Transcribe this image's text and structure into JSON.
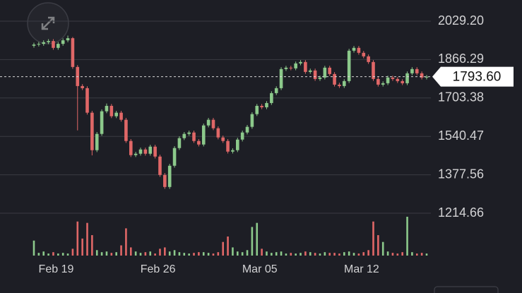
{
  "chart_data": {
    "type": "candlestick",
    "open": [
      1925,
      1930,
      1933,
      1940,
      1945,
      1916,
      1933,
      1948,
      1957,
      1835,
      1754,
      1745,
      1641,
      1482,
      1551,
      1647,
      1670,
      1626,
      1641,
      1611,
      1521,
      1461,
      1467,
      1485,
      1467,
      1497,
      1455,
      1377,
      1326,
      1416,
      1491,
      1533,
      1551,
      1557,
      1521,
      1506,
      1587,
      1611,
      1575,
      1536,
      1521,
      1476,
      1482,
      1527,
      1557,
      1581,
      1635,
      1670,
      1664,
      1682,
      1724,
      1745,
      1826,
      1832,
      1829,
      1850,
      1856,
      1814,
      1820,
      1784,
      1790,
      1832,
      1805,
      1760,
      1754,
      1775,
      1904,
      1916,
      1895,
      1880,
      1856,
      1784,
      1760,
      1766,
      1790,
      1784,
      1775,
      1766,
      1808,
      1826,
      1808,
      1790
    ],
    "high": [
      1938,
      1941,
      1948,
      1953,
      1953,
      1941,
      1956,
      1968,
      1962,
      1843,
      1762,
      1753,
      1649,
      1559,
      1655,
      1680,
      1678,
      1649,
      1649,
      1619,
      1529,
      1475,
      1493,
      1493,
      1505,
      1505,
      1463,
      1385,
      1424,
      1499,
      1541,
      1559,
      1565,
      1565,
      1529,
      1595,
      1619,
      1619,
      1583,
      1544,
      1529,
      1490,
      1535,
      1565,
      1589,
      1643,
      1678,
      1678,
      1690,
      1732,
      1753,
      1834,
      1840,
      1840,
      1858,
      1864,
      1864,
      1828,
      1828,
      1798,
      1840,
      1840,
      1813,
      1768,
      1783,
      1912,
      1924,
      1924,
      1903,
      1888,
      1864,
      1792,
      1774,
      1798,
      1798,
      1792,
      1783,
      1816,
      1834,
      1834,
      1816,
      1801
    ],
    "low": [
      1917,
      1922,
      1925,
      1932,
      1908,
      1908,
      1925,
      1940,
      1827,
      1566,
      1737,
      1633,
      1460,
      1474,
      1543,
      1639,
      1618,
      1618,
      1603,
      1513,
      1453,
      1453,
      1459,
      1459,
      1459,
      1447,
      1369,
      1318,
      1318,
      1408,
      1483,
      1525,
      1543,
      1513,
      1498,
      1498,
      1579,
      1567,
      1528,
      1513,
      1468,
      1468,
      1474,
      1519,
      1549,
      1573,
      1627,
      1656,
      1656,
      1674,
      1716,
      1737,
      1818,
      1821,
      1821,
      1842,
      1806,
      1806,
      1776,
      1776,
      1782,
      1797,
      1752,
      1746,
      1746,
      1767,
      1896,
      1887,
      1872,
      1848,
      1776,
      1752,
      1752,
      1758,
      1776,
      1767,
      1758,
      1758,
      1800,
      1800,
      1782,
      1782
    ],
    "close": [
      1930,
      1933,
      1940,
      1945,
      1916,
      1933,
      1948,
      1957,
      1835,
      1754,
      1745,
      1641,
      1482,
      1551,
      1647,
      1670,
      1626,
      1641,
      1611,
      1521,
      1461,
      1467,
      1485,
      1467,
      1497,
      1455,
      1377,
      1326,
      1416,
      1491,
      1533,
      1551,
      1557,
      1521,
      1506,
      1587,
      1611,
      1575,
      1536,
      1521,
      1476,
      1482,
      1527,
      1557,
      1581,
      1635,
      1670,
      1664,
      1682,
      1724,
      1745,
      1826,
      1832,
      1829,
      1850,
      1856,
      1814,
      1820,
      1784,
      1790,
      1832,
      1805,
      1760,
      1754,
      1775,
      1904,
      1916,
      1895,
      1880,
      1856,
      1784,
      1760,
      1766,
      1790,
      1784,
      1775,
      1766,
      1808,
      1826,
      1808,
      1790,
      1793.6
    ],
    "volume": [
      22,
      4,
      6,
      3,
      5,
      3,
      4,
      3,
      10,
      50,
      25,
      48,
      30,
      8,
      5,
      6,
      4,
      5,
      15,
      40,
      12,
      6,
      4,
      5,
      6,
      3,
      10,
      12,
      6,
      8,
      5,
      4,
      3,
      4,
      5,
      5,
      4,
      3,
      5,
      20,
      28,
      12,
      6,
      5,
      8,
      42,
      48,
      10,
      6,
      4,
      5,
      6,
      3,
      4,
      3,
      4,
      6,
      5,
      4,
      3,
      5,
      4,
      4,
      3,
      5,
      6,
      4,
      3,
      5,
      8,
      50,
      30,
      20,
      6,
      4,
      3,
      5,
      57,
      5,
      3,
      4,
      3
    ],
    "up_color": "#8cc98b",
    "down_color": "#e06767",
    "ylim": [
      1214.66,
      2029.2
    ],
    "yticks": [
      {
        "value": 2029.2,
        "label": "2029.20"
      },
      1866.29,
      1703.38,
      1540.47,
      1377.56,
      1214.66
    ],
    "xlim": [
      0,
      81
    ],
    "xticks": [
      {
        "value": 4,
        "label": "Feb 19"
      },
      {
        "value": 25,
        "label": "Feb 26"
      },
      {
        "value": 46,
        "label": "Mar 05"
      },
      {
        "value": 67,
        "label": "Mar 12"
      }
    ],
    "last_price": {
      "value": 1793.6,
      "label": "1793.60"
    },
    "grid": true
  }
}
